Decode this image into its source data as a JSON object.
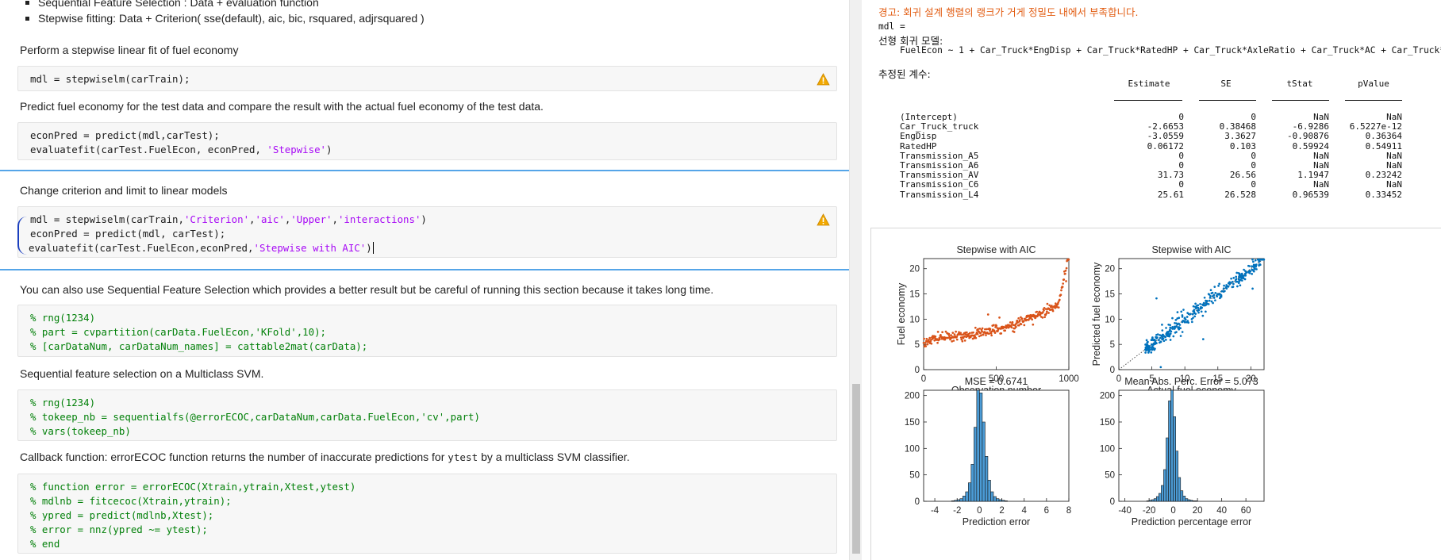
{
  "editor": {
    "bullets": [
      "Sequential Feature Selection : Data + evaluation function",
      "Stepwise fitting: Data + Criterion( sse(default), aic, bic, rsquared, adjrsquared )"
    ],
    "texts": {
      "t1": "Perform a stepwise linear fit of fuel economy",
      "t2": "Predict fuel economy for the test data and compare the result with the actual fuel economy of the test data.",
      "t3": "Change criterion and limit to linear models",
      "t4": "You can also use Sequential Feature Selection which provides a better result but be careful of running this section because it takes long time.",
      "t5": "Sequential feature selection on a Multiclass SVM.",
      "t6_pre": "Callback function: errorECOC function returns the number of inaccurate predictions for ",
      "t6_code": "ytest",
      "t6_post": " by a multiclass SVM classifier."
    },
    "code1": [
      "mdl = stepwiselm(carTrain);"
    ],
    "code2": {
      "l1": "econPred = predict(mdl,carTest);",
      "l2a": "evaluatefit(carTest.FuelEcon, econPred, ",
      "l2s": "'Stepwise'",
      "l2b": ")"
    },
    "code3": {
      "l1a": "mdl = stepwiselm(carTrain,",
      "l1s1": "'Criterion'",
      "l1c1": ",",
      "l1s2": "'aic'",
      "l1c2": ",",
      "l1s3": "'Upper'",
      "l1c3": ",",
      "l1s4": "'interactions'",
      "l1b": ")",
      "l2": "econPred = predict(mdl, carTest);",
      "l3a": "evaluatefit(carTest.FuelEcon,econPred,",
      "l3s": "'Stepwise with AIC'",
      "l3b": ")"
    },
    "code4": [
      "% rng(1234)",
      "% part = cvpartition(carData.FuelEcon,'KFold',10);",
      "% [carDataNum, carDataNum_names] = cattable2mat(carData);"
    ],
    "code5": [
      "% rng(1234)",
      "% tokeep_nb = sequentialfs(@errorECOC,carDataNum,carData.FuelEcon,'cv',part)",
      "% vars(tokeep_nb)"
    ],
    "code6": [
      "% function error = errorECOC(Xtrain,ytrain,Xtest,ytest)",
      "% mdlnb = fitcecoc(Xtrain,ytrain);",
      "% ypred = predict(mdlnb,Xtest);",
      "% error = nnz(ypred ~= ytest);",
      "% end"
    ]
  },
  "output": {
    "warning": "경고: 회귀 설계 행렬의 랭크가 거게 정밀도 내에서 부족합니다.",
    "mdl_label": "mdl =",
    "model_title": "선형 회귀 모델:",
    "formula": "FuelEcon ~ 1 + Car_Truck*EngDisp + Car_Truck*RatedHP + Car_Truck*AxleRatio + Car_Truck*AC + Car_Truck*",
    "coef_title": "추정된 계수:",
    "columns": [
      "Estimate",
      "SE",
      "tStat",
      "pValue"
    ],
    "rows": [
      {
        "name": "(Intercept)",
        "values": [
          "0",
          "0",
          "NaN",
          "NaN"
        ]
      },
      {
        "name": "Car_Truck_truck",
        "values": [
          "-2.6653",
          "0.38468",
          "-6.9286",
          "6.5227e-12"
        ]
      },
      {
        "name": "EngDisp",
        "values": [
          "-3.0559",
          "3.3627",
          "-0.90876",
          "0.36364"
        ]
      },
      {
        "name": "RatedHP",
        "values": [
          "0.06172",
          "0.103",
          "0.59924",
          "0.54911"
        ]
      },
      {
        "name": "Transmission_A5",
        "values": [
          "0",
          "0",
          "NaN",
          "NaN"
        ]
      },
      {
        "name": "Transmission_A6",
        "values": [
          "0",
          "0",
          "NaN",
          "NaN"
        ]
      },
      {
        "name": "Transmission_AV",
        "values": [
          "31.73",
          "26.56",
          "1.1947",
          "0.23242"
        ]
      },
      {
        "name": "Transmission_C6",
        "values": [
          "0",
          "0",
          "NaN",
          "NaN"
        ]
      },
      {
        "name": "Transmission_L4",
        "values": [
          "25.61",
          "26.528",
          "0.96539",
          "0.33452"
        ]
      }
    ]
  },
  "chart_data": [
    {
      "type": "scatter",
      "title": "Stepwise with AIC",
      "xlabel": "Observation number",
      "ylabel": "Fuel economy",
      "xlim": [
        0,
        1000
      ],
      "ylim": [
        0,
        22
      ],
      "xticks": [
        "0",
        "500",
        "1000"
      ],
      "yticks": [
        "0",
        "5",
        "10",
        "15",
        "20"
      ],
      "color": "#d95319",
      "description_trend": "sorted actual fuel economy rising from about 5 to about 21"
    },
    {
      "type": "scatter",
      "title": "Stepwise with AIC",
      "xlabel": "Actual fuel economy",
      "ylabel": "Predicted fuel economy",
      "xlim": [
        0,
        22
      ],
      "ylim": [
        0,
        22
      ],
      "xticks": [
        "0",
        "5",
        "10",
        "15",
        "20"
      ],
      "yticks": [
        "0",
        "5",
        "10",
        "15",
        "20"
      ],
      "color": "#0072bd"
    },
    {
      "type": "bar",
      "title": "MSE = 0.6741",
      "xlabel": "Prediction error",
      "xlim": [
        -5,
        8
      ],
      "ylim": [
        0,
        210
      ],
      "xticks": [
        "-4",
        "-2",
        "0",
        "2",
        "4",
        "6",
        "8"
      ],
      "yticks": [
        "0",
        "50",
        "100",
        "150",
        "200"
      ],
      "bins": [
        -2.5,
        -2.25,
        -2.0,
        -1.75,
        -1.5,
        -1.25,
        -1.0,
        -0.75,
        -0.5,
        -0.25,
        0.0,
        0.25,
        0.5,
        0.75,
        1.0,
        1.25,
        1.5,
        1.75,
        2.0,
        2.25
      ],
      "values": [
        1,
        2,
        3,
        5,
        10,
        18,
        35,
        70,
        140,
        210,
        205,
        150,
        85,
        40,
        18,
        9,
        5,
        3,
        2,
        1
      ],
      "color": "#4b9bd5"
    },
    {
      "type": "bar",
      "title": "Mean Abs. Perc. Error = 5.073",
      "xlabel": "Prediction percentage error",
      "xlim": [
        -45,
        75
      ],
      "ylim": [
        0,
        210
      ],
      "xticks": [
        "-40",
        "-20",
        "0",
        "20",
        "40",
        "60"
      ],
      "yticks": [
        "0",
        "50",
        "100",
        "150",
        "200"
      ],
      "bins": [
        -22,
        -20,
        -18,
        -16,
        -14,
        -12,
        -10,
        -8,
        -6,
        -4,
        -2,
        0,
        2,
        4,
        6,
        8,
        10,
        12,
        14,
        16,
        18
      ],
      "values": [
        1,
        2,
        3,
        5,
        9,
        15,
        30,
        60,
        120,
        190,
        210,
        160,
        95,
        45,
        20,
        10,
        5,
        3,
        2,
        1,
        1
      ],
      "color": "#4b9bd5"
    }
  ]
}
